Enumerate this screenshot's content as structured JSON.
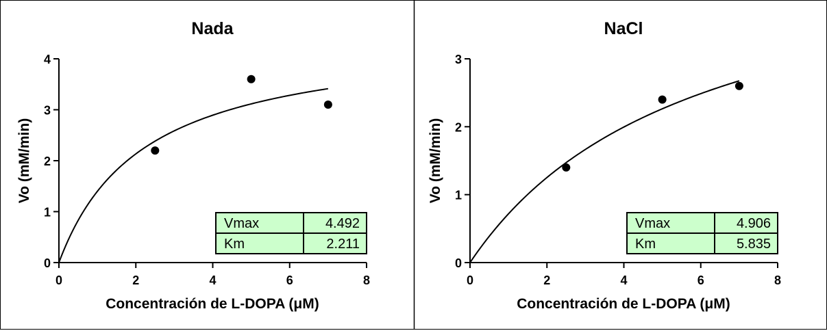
{
  "chart_data": [
    {
      "type": "scatter",
      "title": "Nada",
      "xlabel": "Concentración de L-DOPA (μM)",
      "ylabel": "Vo (mM/min)",
      "xlim": [
        0,
        8
      ],
      "ylim": [
        0,
        4
      ],
      "xticks": [
        0,
        2,
        4,
        6,
        8
      ],
      "yticks": [
        0,
        1,
        2,
        3,
        4
      ],
      "x": [
        2.5,
        5,
        7
      ],
      "y": [
        2.2,
        3.6,
        3.1
      ],
      "fit": {
        "model": "michaelis-menten",
        "vmax": 4.492,
        "km": 2.211,
        "x_range": [
          0,
          7
        ]
      },
      "table": [
        {
          "label": "Vmax",
          "value": "4.492"
        },
        {
          "label": "Km",
          "value": "2.211"
        }
      ],
      "table_color": "#ccffcc",
      "marker_color": "#000000"
    },
    {
      "type": "scatter",
      "title": "NaCl",
      "xlabel": "Concentración de L-DOPA (μM)",
      "ylabel": "Vo (mM/min)",
      "xlim": [
        0,
        8
      ],
      "ylim": [
        0,
        3
      ],
      "xticks": [
        0,
        2,
        4,
        6,
        8
      ],
      "yticks": [
        0,
        1,
        2,
        3
      ],
      "x": [
        2.5,
        5,
        7
      ],
      "y": [
        1.4,
        2.4,
        2.6
      ],
      "fit": {
        "model": "michaelis-menten",
        "vmax": 4.906,
        "km": 5.835,
        "x_range": [
          0,
          7
        ]
      },
      "table": [
        {
          "label": "Vmax",
          "value": "4.906"
        },
        {
          "label": "Km",
          "value": "5.835"
        }
      ],
      "table_color": "#ccffcc",
      "marker_color": "#000000"
    }
  ]
}
